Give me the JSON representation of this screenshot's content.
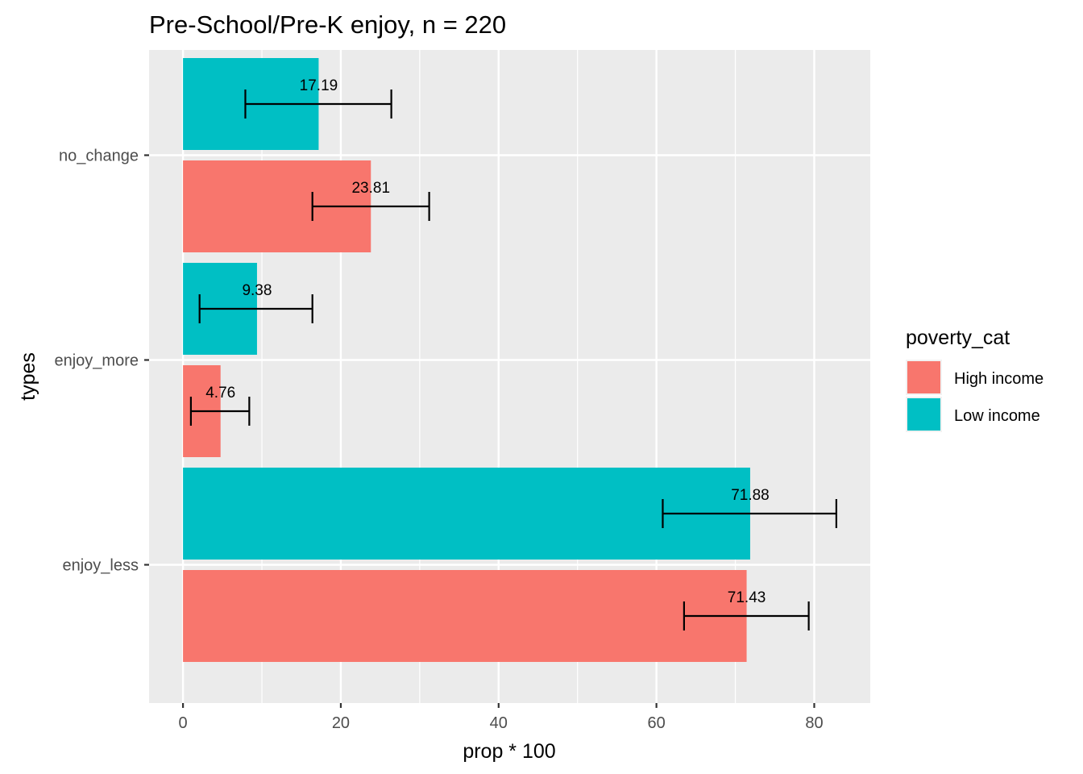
{
  "chart_data": {
    "type": "bar",
    "orientation": "horizontal",
    "title": "Pre-School/Pre-K enjoy, n = 220",
    "xlabel": "prop * 100",
    "ylabel": "types",
    "xlim": [
      -4.3,
      87.1
    ],
    "xticks": [
      0,
      20,
      40,
      60,
      80
    ],
    "categories": [
      "enjoy_less",
      "enjoy_more",
      "no_change"
    ],
    "series": [
      {
        "name": "High income",
        "color": "#F8766D",
        "values": [
          71.43,
          4.76,
          23.81
        ],
        "labels": [
          "71.43",
          "4.76",
          "23.81"
        ],
        "error_low": [
          63.5,
          1.0,
          16.4
        ],
        "error_high": [
          79.3,
          8.4,
          31.2
        ]
      },
      {
        "name": "Low income",
        "color": "#00BFC4",
        "values": [
          71.88,
          9.38,
          17.19
        ],
        "labels": [
          "71.88",
          "9.38",
          "17.19"
        ],
        "error_low": [
          60.8,
          2.1,
          7.9
        ],
        "error_high": [
          82.8,
          16.4,
          26.4
        ]
      }
    ],
    "legend": {
      "title": "poverty_cat",
      "position": "right"
    },
    "grid": true,
    "panel_background": "#EBEBEB"
  }
}
